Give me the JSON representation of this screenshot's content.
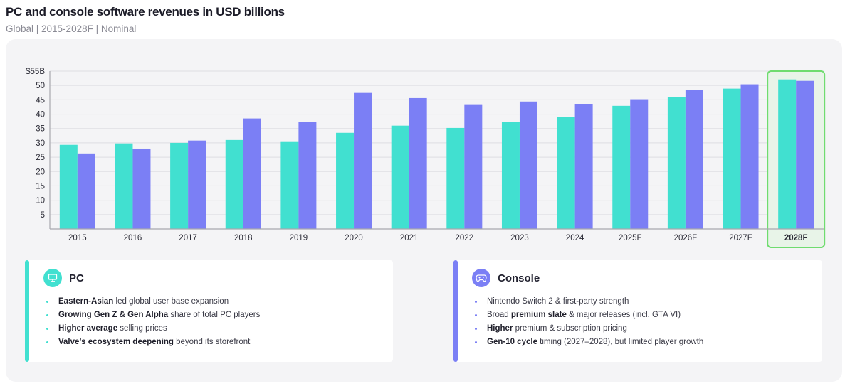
{
  "header": {
    "title": "PC and console software revenues in USD billions",
    "subtitle": "Global | 2015-2028F | Nominal"
  },
  "colors": {
    "pc": "#41e0d0",
    "console": "#7b7ff5",
    "highlight_border": "#6fdc6f",
    "highlight_fill": "#e8f4e8"
  },
  "chart_data": {
    "type": "bar",
    "title": "PC and console software revenues in USD billions",
    "xlabel": "",
    "ylabel": "",
    "ylim": [
      0,
      55
    ],
    "yticks": [
      5,
      10,
      15,
      20,
      25,
      30,
      35,
      40,
      45,
      50,
      55
    ],
    "ytick_labels": [
      "5",
      "10",
      "15",
      "20",
      "25",
      "30",
      "35",
      "40",
      "45",
      "50",
      "$55B"
    ],
    "grid": true,
    "legend": "none",
    "categories": [
      "2015",
      "2016",
      "2017",
      "2018",
      "2019",
      "2020",
      "2021",
      "2022",
      "2023",
      "2024",
      "2025F",
      "2026F",
      "2027F",
      "2028F"
    ],
    "highlighted_category": "2028F",
    "series": [
      {
        "name": "PC",
        "values": [
          29.3,
          29.8,
          30.0,
          31.0,
          30.3,
          33.5,
          36.0,
          35.2,
          37.2,
          39.0,
          42.9,
          45.9,
          48.9,
          52.1
        ]
      },
      {
        "name": "Console",
        "values": [
          26.3,
          28.0,
          30.8,
          38.5,
          37.2,
          47.4,
          45.6,
          43.2,
          44.4,
          43.4,
          45.2,
          48.4,
          50.4,
          51.6
        ]
      }
    ]
  },
  "cards": {
    "pc": {
      "title": "PC",
      "icon": "monitor-icon",
      "bullets": [
        {
          "bold": "Eastern-Asian",
          "text": " led global user base expansion"
        },
        {
          "bold": "Growing Gen Z & Gen Alpha",
          "text": " share of  total PC players"
        },
        {
          "bold": "Higher average",
          "text": " selling prices"
        },
        {
          "bold": "Valve’s ecosystem deepening",
          "text": " beyond its storefront"
        }
      ]
    },
    "console": {
      "title": "Console",
      "icon": "gamepad-icon",
      "bullets": [
        {
          "pre": "Nintendo Switch 2 &  first-party strength",
          "bold": "",
          "text": ""
        },
        {
          "pre": "Broad ",
          "bold": "premium slate",
          "text": " & major releases (incl. GTA VI)"
        },
        {
          "pre": "",
          "bold": "Higher",
          "text": " premium &  subscription pricing"
        },
        {
          "pre": "",
          "bold": "Gen-10 cycle",
          "text": " timing (2027–2028), but limited player growth"
        }
      ]
    }
  }
}
